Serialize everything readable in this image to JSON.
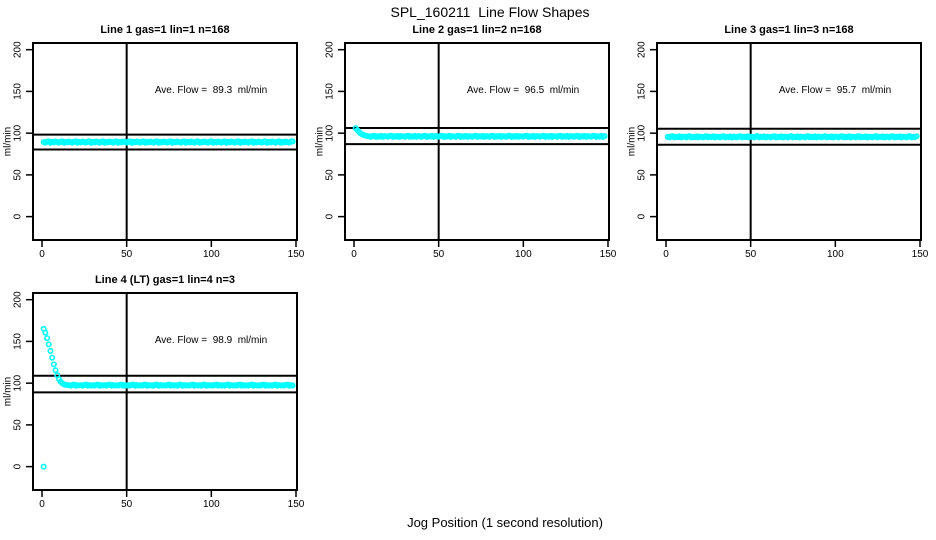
{
  "title": "SPL_160211  Line Flow Shapes",
  "outer_xlabel": "Jog Position (1 second resolution)",
  "chart_data": {
    "type": "scatter",
    "title": "SPL_160211  Line Flow Shapes",
    "xlabel": "Jog Position (1 second resolution)",
    "ylabel": "ml/min",
    "xlim": [
      0,
      150
    ],
    "ylim": [
      0,
      200
    ],
    "x_ticks": [
      0,
      50,
      100,
      150
    ],
    "y_ticks": [
      0,
      50,
      100,
      150,
      200
    ],
    "vline_x": 50,
    "grid": false,
    "legend": "none",
    "point_color": "#00FFFF",
    "line_color": "#000000",
    "panels": [
      {
        "title": "Line 1 gas=1 lin=1 n=168",
        "annotation": "Ave. Flow =  89.3  ml/min",
        "ave_flow": 89.3,
        "ref_lines": [
          98.2,
          80.4
        ],
        "x_start": 1,
        "y_values": [
          89.3,
          88.7,
          89.9,
          90.2,
          88.5,
          89.6,
          88.9,
          90.0,
          89.3,
          88.7,
          89.9,
          90.2,
          88.5,
          89.6,
          88.9,
          90.0,
          89.3,
          88.7,
          89.9,
          90.2,
          88.5,
          89.6,
          88.9,
          90.0,
          89.3,
          88.7,
          89.9,
          90.2,
          88.5,
          89.6,
          88.9,
          90.0,
          89.3,
          88.7,
          89.9,
          90.2,
          88.5,
          89.6,
          88.9,
          90.0,
          89.3,
          88.7,
          89.9,
          90.2,
          88.5,
          89.6,
          88.9,
          90.0,
          89.3,
          88.7,
          89.9,
          90.2,
          88.5,
          89.6,
          88.9,
          90.0,
          89.3,
          88.7,
          89.9,
          90.2,
          88.5,
          89.6,
          88.9,
          90.0,
          89.3,
          88.7,
          89.9,
          90.2,
          88.5,
          89.6,
          88.9,
          90.0,
          89.3,
          88.7,
          89.9,
          90.2,
          88.5,
          89.6,
          88.9,
          90.0,
          89.3,
          88.7,
          89.9,
          90.2,
          88.5,
          89.6,
          88.9,
          90.0,
          89.3,
          88.7,
          89.9,
          90.2,
          88.5,
          89.6,
          88.9,
          90.0,
          89.3,
          88.7,
          89.9,
          90.2,
          88.5,
          89.6,
          88.9,
          90.0,
          89.3,
          88.7,
          89.9,
          90.2,
          88.5,
          89.6,
          88.9,
          90.0,
          89.3,
          88.7,
          89.9,
          90.2,
          88.5,
          89.6,
          88.9,
          90.0,
          89.3,
          88.7,
          89.9,
          90.2,
          88.5,
          89.6,
          88.9,
          90.0,
          89.3,
          88.7,
          89.9,
          90.2,
          88.5,
          89.6,
          88.9,
          90.0,
          89.3,
          88.7,
          89.9,
          90.2,
          88.5,
          89.6,
          88.9,
          90.0,
          89.3,
          88.7,
          89.9,
          90.2
        ],
        "extra_points": []
      },
      {
        "title": "Line 2 gas=1 lin=2 n=168",
        "annotation": "Ave. Flow =  96.5  ml/min",
        "ave_flow": 96.5,
        "ref_lines": [
          106.2,
          86.9
        ],
        "x_start": 1,
        "y_values": [
          106.0,
          103.6,
          101.4,
          99.6,
          98.4,
          97.5,
          96.9,
          96.5,
          96.2,
          95.7,
          96.6,
          96.9,
          95.5,
          96.3,
          95.9,
          96.8,
          95.6,
          96.4,
          96.2,
          95.7,
          96.6,
          96.9,
          95.5,
          96.3,
          95.9,
          96.8,
          95.6,
          96.4,
          96.2,
          95.7,
          96.6,
          96.9,
          95.5,
          96.3,
          95.9,
          96.8,
          95.6,
          96.4,
          96.2,
          95.7,
          96.6,
          96.9,
          95.5,
          96.3,
          95.9,
          96.8,
          95.6,
          96.4,
          96.2,
          95.7,
          96.6,
          96.9,
          95.5,
          96.3,
          95.9,
          96.8,
          95.6,
          96.4,
          96.2,
          95.7,
          96.6,
          96.9,
          95.5,
          96.3,
          95.9,
          96.8,
          95.6,
          96.4,
          96.2,
          95.7,
          96.6,
          96.9,
          95.5,
          96.3,
          95.9,
          96.8,
          95.6,
          96.4,
          96.2,
          95.7,
          96.6,
          96.9,
          95.5,
          96.3,
          95.9,
          96.8,
          95.6,
          96.4,
          96.2,
          95.7,
          96.6,
          96.9,
          95.5,
          96.3,
          95.9,
          96.8,
          95.6,
          96.4,
          96.2,
          95.7,
          96.6,
          96.9,
          95.5,
          96.3,
          95.9,
          96.8,
          95.6,
          96.4,
          96.2,
          95.7,
          96.6,
          96.9,
          95.5,
          96.3,
          95.9,
          96.8,
          95.6,
          96.4,
          96.2,
          95.7,
          96.6,
          96.9,
          95.5,
          96.3,
          95.9,
          96.8,
          95.6,
          96.4,
          96.2,
          95.7,
          96.6,
          96.9,
          95.5,
          96.3,
          95.9,
          96.8,
          95.6,
          96.4,
          96.2,
          95.7,
          96.6,
          96.9,
          95.5,
          96.3,
          95.9,
          96.8,
          95.6,
          96.4
        ],
        "extra_points": []
      },
      {
        "title": "Line 3 gas=1 lin=3 n=168",
        "annotation": "Ave. Flow =  95.7  ml/min",
        "ave_flow": 95.7,
        "ref_lines": [
          105.3,
          86.1
        ],
        "x_start": 1,
        "y_values": [
          95.5,
          95.0,
          96.0,
          96.3,
          94.9,
          95.7,
          95.2,
          96.1,
          94.8,
          95.8,
          95.5,
          95.0,
          96.0,
          96.3,
          94.9,
          95.7,
          95.2,
          96.1,
          94.8,
          95.8,
          95.5,
          95.0,
          96.0,
          96.3,
          94.9,
          95.7,
          95.2,
          96.1,
          94.8,
          95.8,
          95.5,
          95.0,
          96.0,
          96.3,
          94.9,
          95.7,
          95.2,
          96.1,
          94.8,
          95.8,
          95.5,
          95.0,
          96.0,
          96.3,
          94.9,
          95.7,
          95.2,
          96.1,
          94.8,
          95.8,
          95.5,
          95.0,
          96.0,
          96.3,
          94.9,
          95.7,
          95.2,
          96.1,
          94.8,
          95.8,
          95.5,
          95.0,
          96.0,
          96.3,
          94.9,
          95.7,
          95.2,
          96.1,
          94.8,
          95.8,
          95.5,
          95.0,
          96.0,
          96.3,
          94.9,
          95.7,
          95.2,
          96.1,
          94.8,
          95.8,
          95.5,
          95.0,
          96.0,
          96.3,
          94.9,
          95.7,
          95.2,
          96.1,
          94.8,
          95.8,
          95.5,
          95.0,
          96.0,
          96.3,
          94.9,
          95.7,
          95.2,
          96.1,
          94.8,
          95.8,
          95.5,
          95.0,
          96.0,
          96.3,
          94.9,
          95.7,
          95.2,
          96.1,
          94.8,
          95.8,
          95.5,
          95.0,
          96.0,
          96.3,
          94.9,
          95.7,
          95.2,
          96.1,
          94.8,
          95.8,
          95.5,
          95.0,
          96.0,
          96.3,
          94.9,
          95.7,
          95.2,
          96.1,
          94.8,
          95.8,
          95.5,
          95.0,
          96.0,
          96.3,
          94.9,
          95.7,
          95.2,
          96.1,
          94.8,
          95.8,
          95.5,
          95.0,
          96.0,
          96.3,
          94.9,
          95.7,
          95.2,
          96.1
        ],
        "extra_points": []
      },
      {
        "title": "Line 4 (LT) gas=1 lin=4 n=3",
        "annotation": "Ave. Flow =  98.9  ml/min",
        "ave_flow": 98.9,
        "ref_lines": [
          108.8,
          89.0
        ],
        "x_start": 1,
        "y_values": [
          165.0,
          160.5,
          154.0,
          146.5,
          138.5,
          130.5,
          122.5,
          115.5,
          109.5,
          105.0,
          101.8,
          99.8,
          98.6,
          98.0,
          97.7,
          97.5,
          97.1,
          97.9,
          98.2,
          96.9,
          97.6,
          97.2,
          97.5,
          97.1,
          97.9,
          98.2,
          96.9,
          97.6,
          97.2,
          97.5,
          97.1,
          97.9,
          98.2,
          96.9,
          97.6,
          97.2,
          97.5,
          97.1,
          97.9,
          98.2,
          96.9,
          97.6,
          97.2,
          97.5,
          97.1,
          97.9,
          98.2,
          96.9,
          97.6,
          97.2,
          97.5,
          97.1,
          97.9,
          98.2,
          96.9,
          97.6,
          97.2,
          97.5,
          97.1,
          97.9,
          98.2,
          96.9,
          97.6,
          97.2,
          97.5,
          97.1,
          97.9,
          98.2,
          96.9,
          97.6,
          97.2,
          97.5,
          97.1,
          97.9,
          98.2,
          96.9,
          97.6,
          97.2,
          97.5,
          97.1,
          97.9,
          98.2,
          96.9,
          97.6,
          97.2,
          97.5,
          97.1,
          97.9,
          98.2,
          96.9,
          97.6,
          97.2,
          97.5,
          97.1,
          97.9,
          98.2,
          96.9,
          97.6,
          97.2,
          97.5,
          97.1,
          97.9,
          98.2,
          96.9,
          97.6,
          97.2,
          97.5,
          97.1,
          97.9,
          98.2,
          96.9,
          97.6,
          97.2,
          97.5,
          97.1,
          97.9,
          98.2,
          96.9,
          97.6,
          97.2,
          97.5,
          97.1,
          97.9,
          98.2,
          96.9,
          97.6,
          97.2,
          97.5,
          97.1,
          97.9,
          98.2,
          96.9,
          97.6,
          97.2,
          97.5,
          97.1,
          97.9,
          98.2,
          96.9,
          97.6,
          97.2,
          97.5,
          97.1,
          97.9,
          98.2,
          96.9,
          97.6,
          97.2
        ],
        "extra_points": [
          [
            1,
            0
          ]
        ]
      }
    ]
  }
}
